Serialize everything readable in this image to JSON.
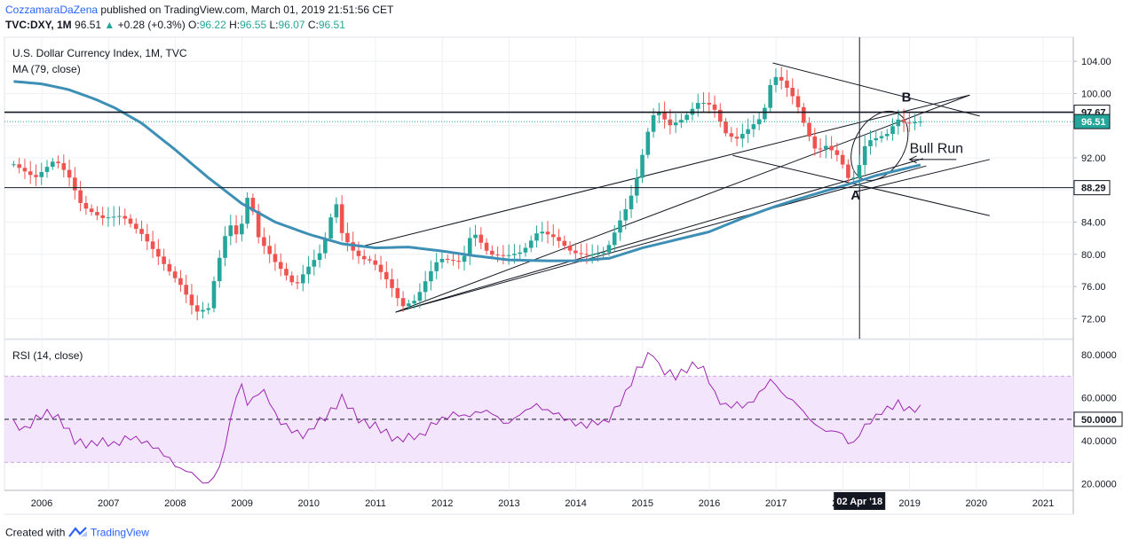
{
  "header": {
    "author": "CozzamaraDaZena",
    "published": "published on TradingView.com, March 01, 2019 21:51:56 CET",
    "symbol": "TVC:DXY, 1M",
    "last": "96.51",
    "change": "+0.28 (+0.3%)",
    "o_label": "O:",
    "o": "96.22",
    "h_label": "H:",
    "h": "96.55",
    "l_label": "L:",
    "l": "96.07",
    "c_label": "C:",
    "c": "96.51"
  },
  "footer": {
    "created": "Created with",
    "brand": "TradingView"
  },
  "colors": {
    "up": "#26a69a",
    "down": "#ef5350",
    "ma": "#3d8fb5",
    "rsi": "#9c27b0",
    "rsi_band": "#f3e5fb"
  },
  "chart_data": [
    {
      "type": "candlestick",
      "title": "U.S. Dollar Currency Index, 1M, TVC",
      "indicator": "MA (79, close)",
      "x_labels": [
        "2006",
        "2007",
        "2008",
        "2009",
        "2010",
        "2011",
        "2012",
        "2013",
        "2014",
        "2015",
        "2016",
        "2017",
        "2018",
        "2019",
        "2020",
        "2021"
      ],
      "crosshair_date": "02 Apr '18",
      "y_ticks": [
        "104.00",
        "100.00",
        "96.00",
        "92.00",
        "88.00",
        "84.00",
        "80.00",
        "76.00",
        "72.00"
      ],
      "ylim": [
        69.5,
        107
      ],
      "price_labels": {
        "resistance": "97.67",
        "last": "96.51",
        "support": "88.29"
      },
      "horizontal_lines": [
        97.67,
        88.29
      ],
      "annotations": {
        "a": "A",
        "b": "B",
        "bull": "Bull Run"
      },
      "close_anchors": [
        [
          "2005.58",
          91.2
        ],
        [
          "2005.9",
          89.5
        ],
        [
          "2006.2",
          91.8
        ],
        [
          "2006.4",
          89.8
        ],
        [
          "2006.6",
          86.0
        ],
        [
          "2006.9",
          84.5
        ],
        [
          "2007.2",
          84.8
        ],
        [
          "2007.5",
          82.5
        ],
        [
          "2007.9",
          78.0
        ],
        [
          "2008.1",
          76.0
        ],
        [
          "2008.3",
          72.8
        ],
        [
          "2008.5",
          73.3
        ],
        [
          "2008.6",
          77.5
        ],
        [
          "2008.8",
          84.0
        ],
        [
          "2008.95",
          82.0
        ],
        [
          "2009.1",
          87.8
        ],
        [
          "2009.25",
          82.0
        ],
        [
          "2009.5",
          79.0
        ],
        [
          "2009.8",
          76.0
        ],
        [
          "2009.95",
          78.0
        ],
        [
          "2010.2",
          80.5
        ],
        [
          "2010.4",
          86.8
        ],
        [
          "2010.5",
          82.5
        ],
        [
          "2010.7",
          80.0
        ],
        [
          "2010.85",
          79.3
        ],
        [
          "2010.95",
          79.2
        ],
        [
          "2011.2",
          76.5
        ],
        [
          "2011.4",
          73.5
        ],
        [
          "2011.6",
          74.3
        ],
        [
          "2011.8",
          77.5
        ],
        [
          "2011.95",
          79.5
        ],
        [
          "2012.3",
          79.0
        ],
        [
          "2012.45",
          83.0
        ],
        [
          "2012.7",
          80.0
        ],
        [
          "2012.95",
          79.8
        ],
        [
          "2013.2",
          80.3
        ],
        [
          "2013.45",
          83.0
        ],
        [
          "2013.7",
          82.0
        ],
        [
          "2013.95",
          80.2
        ],
        [
          "2014.2",
          79.9
        ],
        [
          "2014.45",
          80.3
        ],
        [
          "2014.65",
          84.0
        ],
        [
          "2014.8",
          86.5
        ],
        [
          "2014.95",
          90.5
        ],
        [
          "2015.05",
          94.5
        ],
        [
          "2015.2",
          98.2
        ],
        [
          "2015.4",
          96.0
        ],
        [
          "2015.6",
          96.8
        ],
        [
          "2015.85",
          99.0
        ],
        [
          "2016.05",
          98.5
        ],
        [
          "2016.25",
          95.0
        ],
        [
          "2016.4",
          94.3
        ],
        [
          "2016.6",
          95.7
        ],
        [
          "2016.8",
          97.2
        ],
        [
          "2016.95",
          102.3
        ],
        [
          "2017.1",
          101.5
        ],
        [
          "2017.3",
          99.0
        ],
        [
          "2017.45",
          95.5
        ],
        [
          "2017.6",
          92.8
        ],
        [
          "2017.75",
          93.5
        ],
        [
          "2017.95",
          92.1
        ],
        [
          "2018.1",
          89.1
        ],
        [
          "2018.2",
          89.8
        ],
        [
          "2018.35",
          94.0
        ],
        [
          "2018.55",
          94.6
        ],
        [
          "2018.7",
          95.1
        ],
        [
          "2018.8",
          96.9
        ],
        [
          "2018.95",
          96.2
        ],
        [
          "2019.1",
          96.5
        ],
        [
          "2019.17",
          96.51
        ]
      ],
      "ma_anchors": [
        [
          "2005.58",
          101.5
        ],
        [
          "2006.0",
          101.2
        ],
        [
          "2006.4",
          100.5
        ],
        [
          "2006.8",
          99.3
        ],
        [
          "2007.1",
          98.2
        ],
        [
          "2007.5",
          96.3
        ],
        [
          "2008.0",
          93.0
        ],
        [
          "2008.5",
          89.5
        ],
        [
          "2009.0",
          86.3
        ],
        [
          "2009.5",
          84.0
        ],
        [
          "2010.0",
          82.5
        ],
        [
          "2010.5",
          81.3
        ],
        [
          "2011.0",
          80.8
        ],
        [
          "2011.5",
          80.9
        ],
        [
          "2012.0",
          80.4
        ],
        [
          "2012.5",
          79.8
        ],
        [
          "2013.0",
          79.3
        ],
        [
          "2013.5",
          79.2
        ],
        [
          "2014.0",
          79.2
        ],
        [
          "2014.5",
          79.5
        ],
        [
          "2015.0",
          80.8
        ],
        [
          "2015.5",
          81.8
        ],
        [
          "2016.0",
          82.8
        ],
        [
          "2016.5",
          84.5
        ],
        [
          "2017.0",
          86.0
        ],
        [
          "2017.5",
          87.3
        ],
        [
          "2018.0",
          88.5
        ],
        [
          "2018.5",
          89.8
        ],
        [
          "2019.0",
          90.8
        ],
        [
          "2019.2",
          91.2
        ]
      ]
    },
    {
      "type": "line",
      "title": "RSI (14, close)",
      "y_ticks": [
        "80.0000",
        "60.0000",
        "50.0000",
        "40.0000",
        "20.0000"
      ],
      "ylim": [
        17,
        87
      ],
      "band": [
        30,
        70
      ],
      "midline": 50,
      "midline_label": "50.0000",
      "anchors": [
        [
          "2005.58",
          48
        ],
        [
          "2005.75",
          45
        ],
        [
          "2005.9",
          50
        ],
        [
          "2006.05",
          53
        ],
        [
          "2006.2",
          52
        ],
        [
          "2006.35",
          47
        ],
        [
          "2006.5",
          40
        ],
        [
          "2006.7",
          38
        ],
        [
          "2006.9",
          40
        ],
        [
          "2007.1",
          38
        ],
        [
          "2007.3",
          42
        ],
        [
          "2007.5",
          40
        ],
        [
          "2007.7",
          37
        ],
        [
          "2007.9",
          32
        ],
        [
          "2008.05",
          27
        ],
        [
          "2008.2",
          26
        ],
        [
          "2008.3",
          24
        ],
        [
          "2008.45",
          19
        ],
        [
          "2008.6",
          24
        ],
        [
          "2008.7",
          30
        ],
        [
          "2008.8",
          46
        ],
        [
          "2008.9",
          60
        ],
        [
          "2009.0",
          66
        ],
        [
          "2009.1",
          55
        ],
        [
          "2009.2",
          62
        ],
        [
          "2009.35",
          63
        ],
        [
          "2009.5",
          52
        ],
        [
          "2009.6",
          48
        ],
        [
          "2009.8",
          44
        ],
        [
          "2009.95",
          42
        ],
        [
          "2010.1",
          48
        ],
        [
          "2010.25",
          51
        ],
        [
          "2010.4",
          56
        ],
        [
          "2010.5",
          60
        ],
        [
          "2010.6",
          56
        ],
        [
          "2010.75",
          50
        ],
        [
          "2010.85",
          48
        ],
        [
          "2011.0",
          47
        ],
        [
          "2011.2",
          43
        ],
        [
          "2011.3",
          40
        ],
        [
          "2011.5",
          42
        ],
        [
          "2011.7",
          42
        ],
        [
          "2011.85",
          48
        ],
        [
          "2012.0",
          50
        ],
        [
          "2012.2",
          53
        ],
        [
          "2012.35",
          51
        ],
        [
          "2012.5",
          53
        ],
        [
          "2012.65",
          54
        ],
        [
          "2012.8",
          52
        ],
        [
          "2012.95",
          47
        ],
        [
          "2013.1",
          51
        ],
        [
          "2013.25",
          54
        ],
        [
          "2013.4",
          57
        ],
        [
          "2013.55",
          54
        ],
        [
          "2013.7",
          53
        ],
        [
          "2013.85",
          50
        ],
        [
          "2014.0",
          48
        ],
        [
          "2014.15",
          47
        ],
        [
          "2014.3",
          49
        ],
        [
          "2014.45",
          48
        ],
        [
          "2014.6",
          55
        ],
        [
          "2014.75",
          62
        ],
        [
          "2014.9",
          72
        ],
        [
          "2015.05",
          78
        ],
        [
          "2015.15",
          82
        ],
        [
          "2015.25",
          74
        ],
        [
          "2015.35",
          72
        ],
        [
          "2015.5",
          70
        ],
        [
          "2015.65",
          73
        ],
        [
          "2015.8",
          76
        ],
        [
          "2015.95",
          72
        ],
        [
          "2016.1",
          60
        ],
        [
          "2016.25",
          56
        ],
        [
          "2016.4",
          57
        ],
        [
          "2016.55",
          56
        ],
        [
          "2016.7",
          60
        ],
        [
          "2016.85",
          66
        ],
        [
          "2016.95",
          69
        ],
        [
          "2017.1",
          61
        ],
        [
          "2017.2",
          60
        ],
        [
          "2017.35",
          56
        ],
        [
          "2017.5",
          50
        ],
        [
          "2017.65",
          46
        ],
        [
          "2017.8",
          44
        ],
        [
          "2017.95",
          45
        ],
        [
          "2018.05",
          40
        ],
        [
          "2018.15",
          38
        ],
        [
          "2018.3",
          46
        ],
        [
          "2018.45",
          50
        ],
        [
          "2018.6",
          54
        ],
        [
          "2018.75",
          56
        ],
        [
          "2018.85",
          58
        ],
        [
          "2018.95",
          54
        ],
        [
          "2019.1",
          55
        ],
        [
          "2019.17",
          55
        ]
      ]
    }
  ]
}
